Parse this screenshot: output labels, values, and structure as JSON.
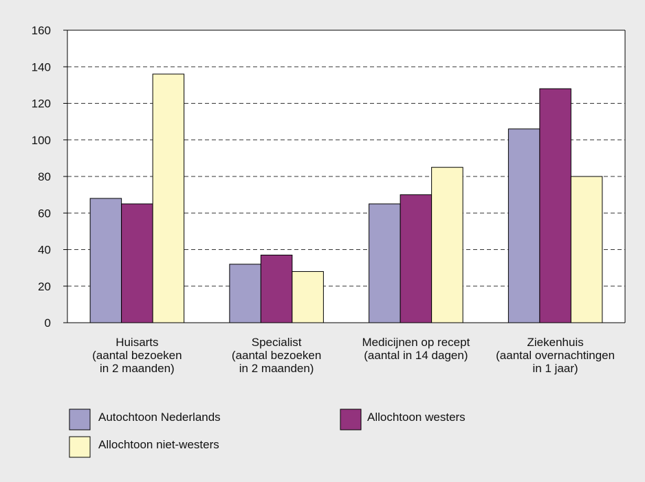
{
  "chart_data": {
    "type": "bar",
    "categories": [
      [
        "Huisarts",
        "(aantal bezoeken",
        "in 2 maanden)"
      ],
      [
        "Specialist",
        "(aantal bezoeken",
        "in 2 maanden)"
      ],
      [
        "Medicijnen op recept",
        "(aantal in 14 dagen)"
      ],
      [
        "Ziekenhuis",
        "(aantal overnachtingen",
        "in 1 jaar)"
      ]
    ],
    "series": [
      {
        "name": "Autochtoon Nederlands",
        "color": "#a29fc9",
        "values": [
          68,
          32,
          65,
          106
        ]
      },
      {
        "name": "Allochtoon westers",
        "color": "#93337d",
        "values": [
          65,
          37,
          70,
          128
        ]
      },
      {
        "name": "Allochtoon niet-westers",
        "color": "#fdf8c6",
        "values": [
          136,
          28,
          85,
          80
        ]
      }
    ],
    "yticks": [
      "0",
      "20",
      "40",
      "60",
      "80",
      "100",
      "120",
      "140",
      "160"
    ],
    "ylim": [
      0,
      160
    ],
    "grid": "dashed horizontal",
    "legend_position": "bottom",
    "title": "",
    "xlabel": "",
    "ylabel": ""
  }
}
